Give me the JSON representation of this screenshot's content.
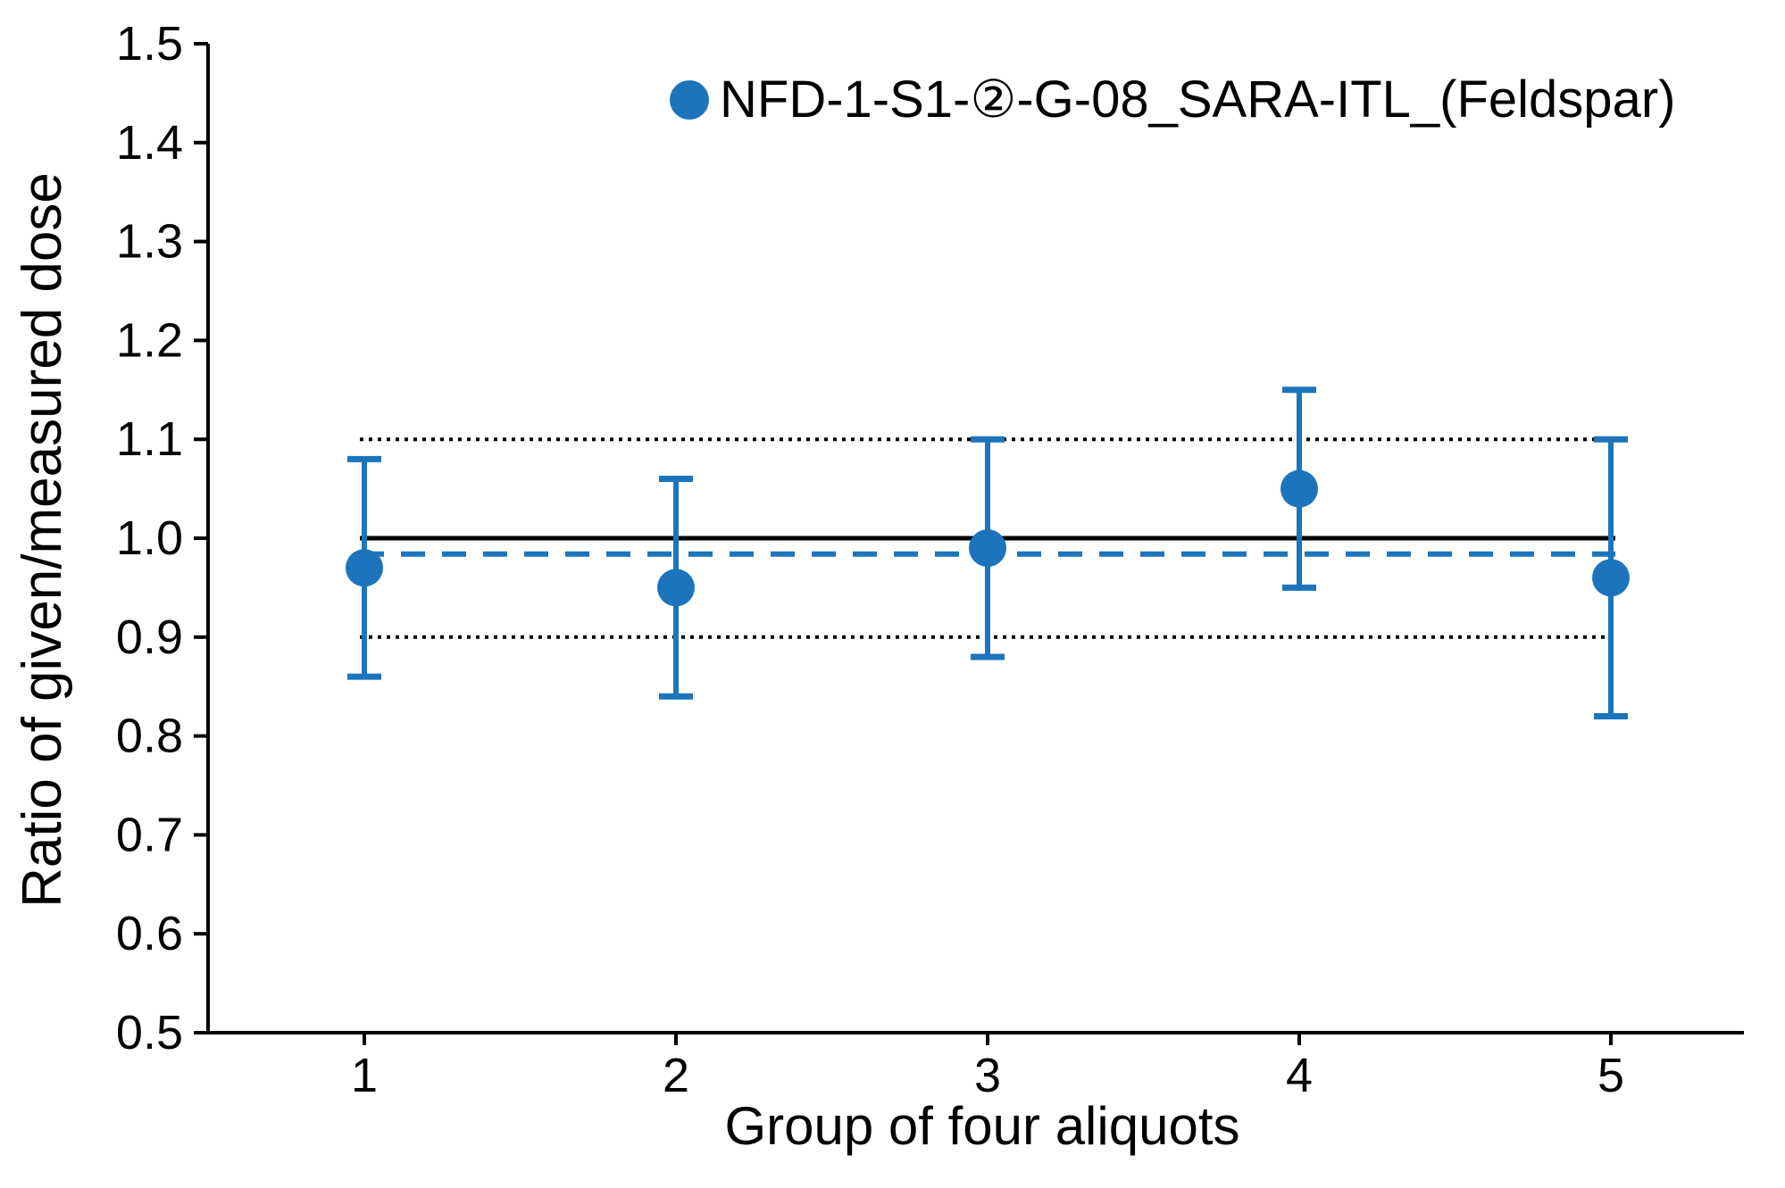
{
  "chart_data": {
    "type": "scatter",
    "title": "",
    "xlabel": "Group of four aliquots",
    "ylabel": "Ratio of given/measured dose",
    "categories": [
      "1",
      "2",
      "3",
      "4",
      "5"
    ],
    "series": [
      {
        "name": "NFD-1-S1-②-G-08_SARA-ITL_(Feldspar)",
        "marker": "circle",
        "color": "#1c75bc",
        "x": [
          1,
          2,
          3,
          4,
          5
        ],
        "values": [
          0.97,
          0.95,
          0.99,
          1.05,
          0.96
        ],
        "error_plus": [
          0.11,
          0.11,
          0.11,
          0.1,
          0.14
        ],
        "error_minus": [
          0.11,
          0.11,
          0.11,
          0.1,
          0.14
        ]
      }
    ],
    "reference_lines": [
      {
        "value": 1.1,
        "style": "dotted",
        "color": "#000000"
      },
      {
        "value": 0.9,
        "style": "dotted",
        "color": "#000000"
      },
      {
        "value": 1.0,
        "style": "solid",
        "color": "#000000"
      },
      {
        "value": 0.984,
        "style": "dashed",
        "color": "#1c75bc"
      }
    ],
    "ylim": [
      0.5,
      1.5
    ],
    "ytick_labels": [
      "0.5",
      "0.6",
      "0.7",
      "0.8",
      "0.9",
      "1.0",
      "1.1",
      "1.2",
      "1.3",
      "1.4",
      "1.5"
    ],
    "xtick_labels": [
      "1",
      "2",
      "3",
      "4",
      "5"
    ],
    "legend_position": "top-center",
    "grid": false,
    "axis_color": "#000000"
  }
}
